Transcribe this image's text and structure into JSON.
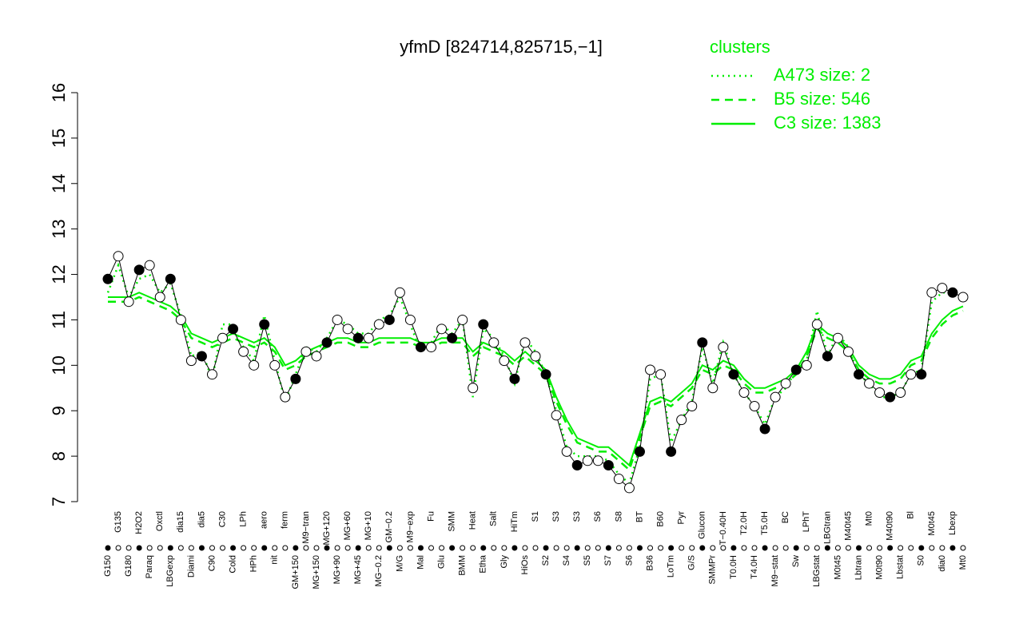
{
  "chart_data": {
    "type": "line",
    "title": "yfmD [824714,825715,−1]",
    "legend_title": "clusters",
    "legend": "top-right",
    "ylim": [
      7,
      16
    ],
    "yticks": [
      7,
      8,
      9,
      10,
      11,
      12,
      13,
      14,
      15,
      16
    ],
    "categories": [
      "G150",
      "G135",
      "G180",
      "H2O2",
      "Paraq",
      "Oxctl",
      "LBGexp",
      "dia15",
      "Diami",
      "dia5",
      "C90",
      "C30",
      "Cold",
      "LPh",
      "HPh",
      "aero",
      "nit",
      "ferm",
      "GM+150",
      "M9−tran",
      "MG+150",
      "MG+120",
      "MG+90",
      "MG+60",
      "MG+45",
      "MG+10",
      "MG−0.2",
      "GM−0.2",
      "M/G",
      "M9−exp",
      "Mal",
      "Fu",
      "Glu",
      "SMM",
      "BMM",
      "Heat",
      "Etha",
      "Salt",
      "Gly",
      "HiTm",
      "HiOs",
      "S1",
      "S2",
      "S3",
      "S4",
      "S3",
      "S5",
      "S6",
      "S7",
      "S8",
      "S6",
      "BT",
      "B36",
      "B60",
      "LoTm",
      "Pyr",
      "G/S",
      "Glucon",
      "SMMPr",
      "T−0.40H",
      "T0.0H",
      "T2.0H",
      "T4.0H",
      "T5.0H",
      "M9−stat",
      "BC",
      "Sw",
      "LPhT",
      "LBGstat",
      "LBGtran",
      "M0t45",
      "M40t45",
      "Lbtran",
      "Mt0",
      "M0t90",
      "M40t90",
      "Lbstat",
      "Bl",
      "S0",
      "M0t45",
      "dia0",
      "Lbexp",
      "Mt0"
    ],
    "values": [
      11.9,
      12.4,
      11.4,
      12.1,
      12.2,
      11.5,
      11.9,
      11.0,
      10.1,
      10.2,
      9.8,
      10.6,
      10.8,
      10.3,
      10.0,
      10.9,
      10.0,
      9.3,
      9.7,
      10.3,
      10.2,
      10.5,
      11.0,
      10.8,
      10.6,
      10.6,
      10.9,
      11.0,
      11.6,
      11.0,
      10.4,
      10.4,
      10.8,
      10.6,
      11.0,
      9.5,
      10.9,
      10.5,
      10.1,
      9.7,
      10.5,
      10.2,
      9.8,
      8.9,
      8.1,
      7.8,
      7.9,
      7.9,
      7.8,
      7.5,
      7.3,
      8.1,
      9.9,
      9.8,
      8.1,
      8.8,
      9.1,
      10.5,
      9.5,
      10.4,
      9.8,
      9.4,
      9.1,
      8.6,
      9.3,
      9.6,
      9.9,
      10.0,
      10.9,
      10.2,
      10.6,
      10.3,
      9.8,
      9.6,
      9.4,
      9.3,
      9.4,
      9.8,
      9.8,
      11.6,
      11.7,
      11.6,
      11.5
    ],
    "series": [
      {
        "name": "A473 size: 2",
        "color": "#00ee00",
        "style": "dotted",
        "values": [
          11.6,
          12.2,
          11.5,
          11.9,
          12.0,
          11.6,
          11.8,
          11.1,
          10.2,
          10.3,
          9.7,
          10.9,
          10.9,
          10.4,
          10.1,
          11.1,
          10.1,
          9.2,
          9.8,
          10.4,
          10.3,
          10.6,
          11.0,
          10.9,
          10.7,
          10.7,
          11.0,
          11.1,
          11.5,
          10.9,
          10.3,
          10.5,
          10.9,
          10.7,
          11.0,
          9.3,
          10.8,
          10.6,
          10.2,
          9.6,
          10.6,
          10.3,
          9.8,
          9.0,
          8.2,
          8.0,
          8.0,
          8.0,
          7.9,
          7.6,
          7.4,
          8.2,
          9.7,
          9.8,
          8.3,
          8.8,
          9.2,
          10.4,
          9.6,
          10.5,
          9.8,
          9.4,
          9.1,
          8.7,
          9.3,
          9.5,
          9.9,
          10.1,
          11.2,
          10.2,
          10.7,
          10.4,
          9.8,
          9.6,
          9.3,
          9.3,
          9.4,
          9.8,
          9.9,
          11.4,
          11.6,
          11.6,
          11.5
        ]
      },
      {
        "name": "B5 size: 546",
        "color": "#00ee00",
        "style": "dashed",
        "values": [
          11.4,
          11.4,
          11.4,
          11.5,
          11.4,
          11.3,
          11.2,
          11.0,
          10.6,
          10.5,
          10.4,
          10.5,
          10.6,
          10.5,
          10.4,
          10.5,
          10.3,
          9.9,
          10.0,
          10.2,
          10.3,
          10.4,
          10.5,
          10.5,
          10.4,
          10.4,
          10.5,
          10.5,
          10.5,
          10.5,
          10.4,
          10.4,
          10.5,
          10.5,
          10.5,
          10.2,
          10.4,
          10.3,
          10.2,
          10.0,
          10.2,
          10.0,
          9.8,
          9.2,
          8.7,
          8.3,
          8.2,
          8.1,
          8.1,
          7.9,
          7.7,
          8.4,
          9.1,
          9.2,
          9.1,
          9.3,
          9.5,
          9.9,
          9.8,
          10.0,
          9.9,
          9.6,
          9.4,
          9.4,
          9.5,
          9.6,
          9.8,
          10.2,
          10.8,
          10.6,
          10.5,
          10.3,
          9.9,
          9.7,
          9.6,
          9.6,
          9.7,
          10.0,
          10.1,
          10.6,
          10.9,
          11.1,
          11.2
        ]
      },
      {
        "name": "C3 size: 1383",
        "color": "#00ee00",
        "style": "solid",
        "values": [
          11.5,
          11.5,
          11.5,
          11.6,
          11.5,
          11.4,
          11.3,
          11.1,
          10.7,
          10.6,
          10.5,
          10.6,
          10.7,
          10.6,
          10.5,
          10.6,
          10.4,
          10.0,
          10.1,
          10.3,
          10.4,
          10.5,
          10.6,
          10.6,
          10.5,
          10.5,
          10.6,
          10.6,
          10.6,
          10.6,
          10.5,
          10.5,
          10.6,
          10.6,
          10.6,
          10.3,
          10.5,
          10.4,
          10.3,
          10.1,
          10.3,
          10.1,
          9.9,
          9.3,
          8.8,
          8.4,
          8.3,
          8.2,
          8.2,
          8.0,
          7.8,
          8.5,
          9.2,
          9.3,
          9.2,
          9.4,
          9.6,
          10.0,
          9.9,
          10.1,
          10.0,
          9.7,
          9.5,
          9.5,
          9.6,
          9.7,
          9.9,
          10.3,
          10.9,
          10.7,
          10.6,
          10.4,
          10.0,
          9.8,
          9.7,
          9.7,
          9.8,
          10.1,
          10.2,
          10.7,
          11.0,
          11.2,
          11.3
        ]
      }
    ]
  }
}
